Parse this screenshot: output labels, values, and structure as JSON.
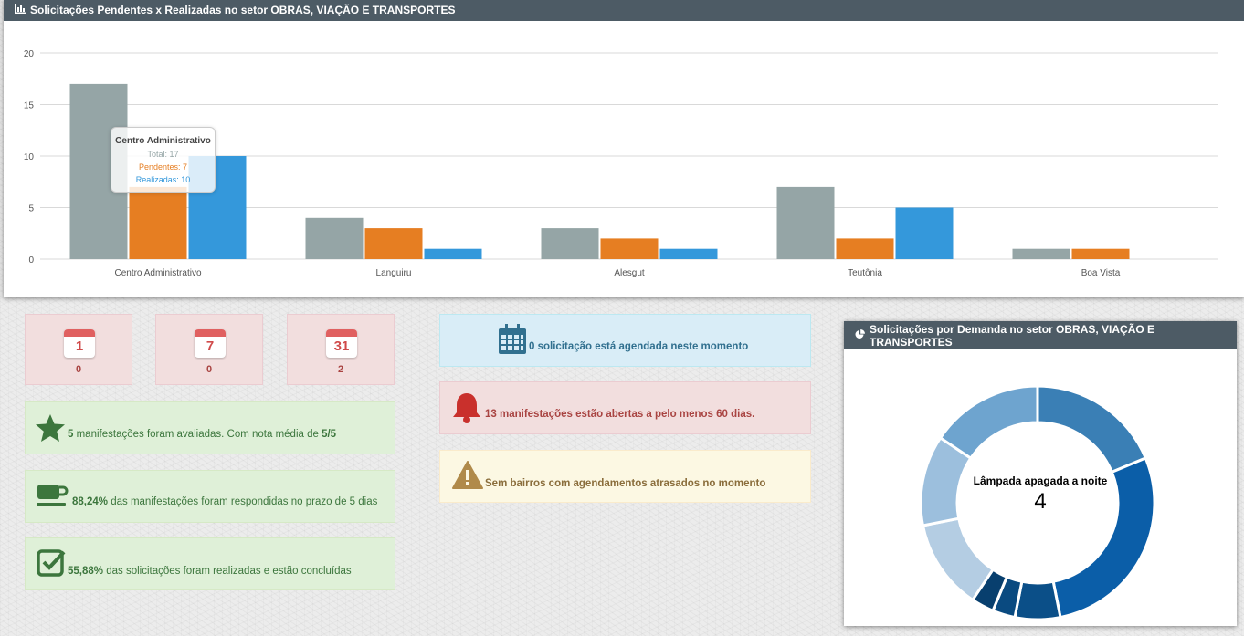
{
  "chart_panel": {
    "title": "Solicitações Pendentes x Realizadas no setor OBRAS, VIAÇÃO E TRANSPORTES"
  },
  "chart_data": {
    "type": "bar",
    "categories": [
      "Centro Administrativo",
      "Languiru",
      "Alesgut",
      "Teutônia",
      "Boa Vista"
    ],
    "series": [
      {
        "name": "Total",
        "color": "#95a5a6",
        "values": [
          17,
          4,
          3,
          7,
          1
        ]
      },
      {
        "name": "Pendentes",
        "color": "#e67e22",
        "values": [
          7,
          3,
          2,
          2,
          1
        ]
      },
      {
        "name": "Realizadas",
        "color": "#3498db",
        "values": [
          10,
          1,
          1,
          5,
          0
        ]
      }
    ],
    "yticks": [
      0,
      5,
      10,
      15,
      20
    ],
    "ylim": [
      0,
      20
    ],
    "grid": true
  },
  "tooltip": {
    "title": "Centro Administrativo",
    "total": "Total: 17",
    "pendentes": "Pendentes: 7",
    "realizadas": "Realizadas: 10"
  },
  "calendar_boxes": [
    {
      "day": "1",
      "count": "0"
    },
    {
      "day": "7",
      "count": "0"
    },
    {
      "day": "31",
      "count": "2"
    }
  ],
  "success_alerts": {
    "rated": {
      "strong": "5",
      "text": " manifestações foram avaliadas. Com nota média de ",
      "strong2": "5/5"
    },
    "deadline": {
      "strong": "88,24%",
      "text": " das manifestações foram respondidas no prazo de 5 dias"
    },
    "done": {
      "strong": "55,88%",
      "text": " das solicitações foram realizadas e estão concluídas"
    }
  },
  "info_alert": {
    "text": "0 solicitação está agendada neste momento"
  },
  "danger_alert": {
    "text": "13 manifestações estão abertas a pelo menos 60 dias."
  },
  "warning_alert": {
    "text": "Sem bairros com agendamentos atrasados no momento"
  },
  "donut_panel": {
    "title": "Solicitações por Demanda no setor OBRAS, VIAÇÃO E TRANSPORTES",
    "center_label": "Lâmpada apagada a noite",
    "center_value": "4"
  },
  "donut_data": {
    "type": "pie",
    "slices": [
      {
        "value": 6,
        "color": "#3a7fb5"
      },
      {
        "value": 9,
        "color": "#0b5ea8"
      },
      {
        "value": 2,
        "color": "#0b4f88"
      },
      {
        "value": 1,
        "color": "#0a4a80"
      },
      {
        "value": 1,
        "color": "#083f6e"
      },
      {
        "value": 4,
        "color": "#b4cde3"
      },
      {
        "value": 4,
        "color": "#9cbfdd"
      },
      {
        "value": 5,
        "color": "#6ea4cf"
      }
    ]
  }
}
